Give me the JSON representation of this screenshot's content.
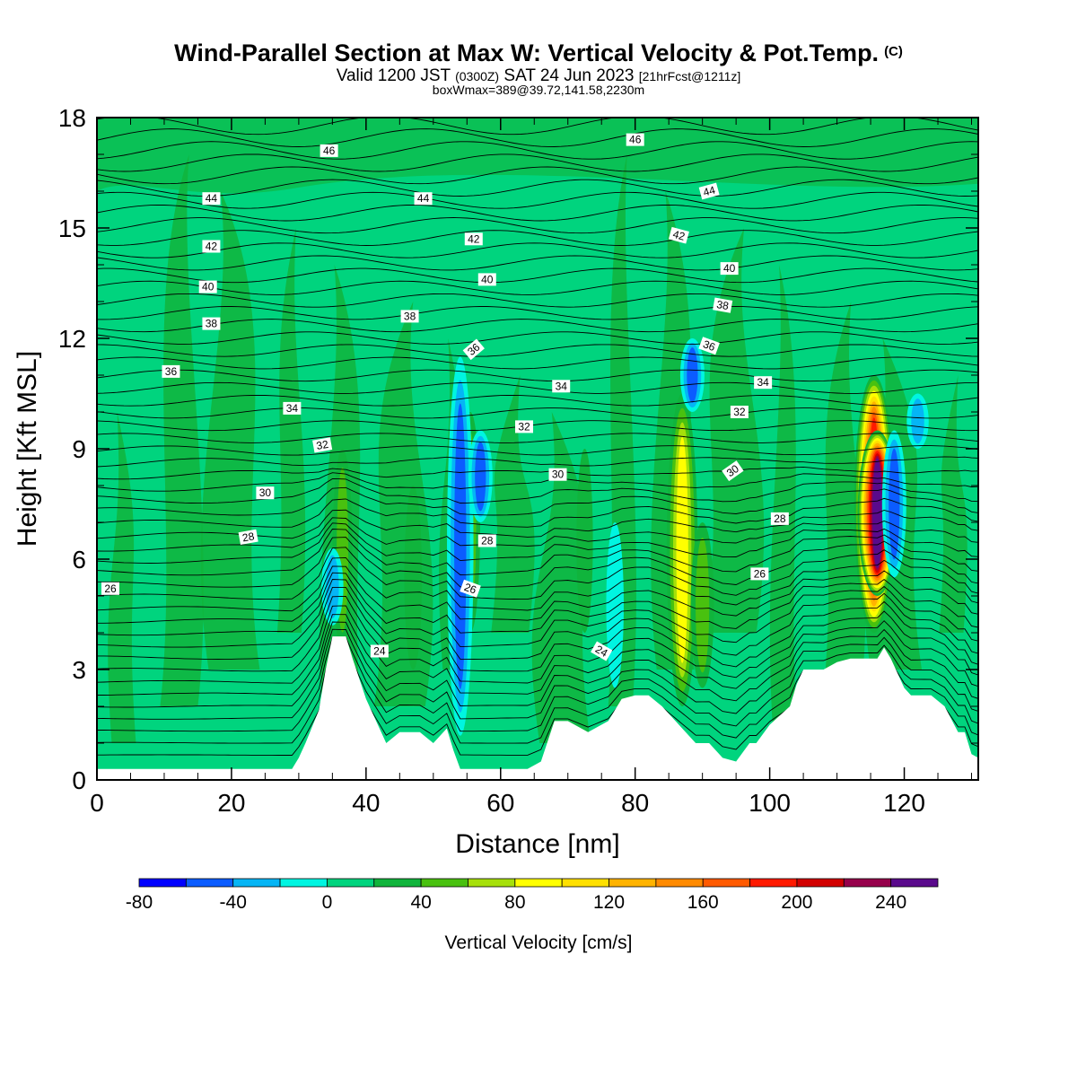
{
  "chart_data": {
    "type": "heatmap",
    "title": "Wind-Parallel Section at Max W: Vertical Velocity & Pot.Temp.",
    "title_mark": "(C)",
    "subtitle_main": "Valid 1200 JST",
    "subtitle_utc": "(0300Z)",
    "subtitle_date": "SAT 24 Jun 2023",
    "subtitle_fcst": "[21hrFcst@1211z]",
    "subtitle2": "boxWmax=389@39.72,141.58,2230m",
    "xlabel": "Distance [nm]",
    "ylabel": "Height [Kft MSL]",
    "xlim": [
      0,
      131
    ],
    "ylim": [
      0,
      18
    ],
    "x_ticks": [
      "0",
      "20",
      "40",
      "60",
      "80",
      "100",
      "120"
    ],
    "y_ticks": [
      "0",
      "3",
      "6",
      "9",
      "12",
      "15",
      "18"
    ],
    "colorbar": {
      "label": "Vertical Velocity [cm/s]",
      "ticks": [
        "-80",
        "-40",
        "0",
        "40",
        "80",
        "120",
        "160",
        "200",
        "240"
      ],
      "bounds": [
        -80,
        260
      ],
      "step": 20,
      "colors": [
        "#0000ff",
        "#0b5cff",
        "#05b5f5",
        "#00f5e1",
        "#00d47e",
        "#10b43c",
        "#49c10f",
        "#a6e00a",
        "#ffff00",
        "#ffe000",
        "#ffb300",
        "#ff8a00",
        "#ff5a00",
        "#ff1a00",
        "#d20000",
        "#96004b",
        "#5a0a8c"
      ]
    },
    "background_value_cm_s": 0,
    "updrafts": [
      {
        "x": 36.5,
        "z_bottom": 3.5,
        "z_top": 9,
        "w": 40
      },
      {
        "x": 47,
        "z_bottom": 3,
        "z_top": 8,
        "w": 30
      },
      {
        "x": 55.5,
        "z_bottom": 4,
        "z_top": 10,
        "w": 40
      },
      {
        "x": 72.5,
        "z_bottom": 4,
        "z_top": 9,
        "w": 25
      },
      {
        "x": 87,
        "z_bottom": 2,
        "z_top": 10.5,
        "w": 90
      },
      {
        "x": 90,
        "z_bottom": 2.5,
        "z_top": 7,
        "w": 55
      },
      {
        "x": 115.5,
        "z_bottom": 4,
        "z_top": 11,
        "w": 190
      },
      {
        "x": 116,
        "z_bottom": 5,
        "z_top": 9.5,
        "w": 240
      }
    ],
    "downdrafts": [
      {
        "x": 35,
        "z_bottom": 4.2,
        "z_top": 6.3,
        "w": -50
      },
      {
        "x": 54,
        "z_bottom": 1.2,
        "z_top": 11.5,
        "w": -70
      },
      {
        "x": 57,
        "z_bottom": 7,
        "z_top": 9.5,
        "w": -60
      },
      {
        "x": 77,
        "z_bottom": 2.5,
        "z_top": 7,
        "w": -30
      },
      {
        "x": 88.5,
        "z_bottom": 10,
        "z_top": 12,
        "w": -60
      },
      {
        "x": 118.5,
        "z_bottom": 5.5,
        "z_top": 9.5,
        "w": -60
      },
      {
        "x": 122,
        "z_bottom": 9,
        "z_top": 10.5,
        "w": -50
      }
    ],
    "terrain": {
      "x": [
        0,
        29,
        30,
        31,
        33,
        34,
        35,
        37,
        38,
        40,
        43,
        45,
        48,
        50,
        52,
        53,
        54,
        56,
        58,
        60,
        61,
        62,
        64,
        66,
        68,
        70,
        73,
        76,
        78,
        80,
        82,
        84,
        86,
        89,
        91,
        93,
        95,
        97,
        98,
        100,
        103,
        104,
        105,
        108,
        110,
        112,
        114,
        116,
        117,
        118,
        120,
        121,
        124,
        126,
        128,
        129,
        130,
        131
      ],
      "height_kft": [
        0.3,
        0.3,
        0.6,
        1.0,
        1.9,
        3.0,
        3.9,
        3.9,
        3.3,
        2.2,
        1.0,
        1.3,
        1.3,
        1.0,
        1.4,
        0.8,
        0.3,
        0.3,
        0.3,
        0.3,
        0.3,
        0.3,
        0.3,
        0.5,
        1.6,
        1.6,
        1.3,
        1.6,
        2.2,
        2.3,
        2.3,
        2.0,
        1.6,
        1.0,
        1.0,
        0.6,
        0.5,
        1.0,
        1.0,
        1.5,
        2.0,
        2.6,
        3.0,
        3.0,
        3.2,
        3.3,
        3.3,
        3.3,
        3.6,
        3.3,
        2.5,
        2.3,
        2.3,
        2.0,
        1.3,
        1.3,
        0.7,
        0.6
      ]
    },
    "theta_contours": [
      {
        "value": "24",
        "label_x": 42,
        "label_z": 3.5,
        "angle": 0
      },
      {
        "value": "24",
        "label_x": 75,
        "label_z": 3.5,
        "angle": 30
      },
      {
        "value": "26",
        "label_x": 2,
        "label_z": 5.2,
        "angle": 0
      },
      {
        "value": "26",
        "label_x": 55.5,
        "label_z": 5.2,
        "angle": 20
      },
      {
        "value": "26",
        "label_x": 98.5,
        "label_z": 5.6,
        "angle": 0
      },
      {
        "value": "28",
        "label_x": 22.5,
        "label_z": 6.6,
        "angle": -10
      },
      {
        "value": "28",
        "label_x": 58,
        "label_z": 6.5,
        "angle": 0
      },
      {
        "value": "28",
        "label_x": 101.5,
        "label_z": 7.1,
        "angle": 0
      },
      {
        "value": "30",
        "label_x": 25,
        "label_z": 7.8,
        "angle": 0
      },
      {
        "value": "30",
        "label_x": 68.5,
        "label_z": 8.3,
        "angle": 0
      },
      {
        "value": "30",
        "label_x": 94.5,
        "label_z": 8.4,
        "angle": -35
      },
      {
        "value": "32",
        "label_x": 33.5,
        "label_z": 9.1,
        "angle": -10
      },
      {
        "value": "32",
        "label_x": 63.5,
        "label_z": 9.6,
        "angle": 0
      },
      {
        "value": "32",
        "label_x": 95.5,
        "label_z": 10.0,
        "angle": 0
      },
      {
        "value": "34",
        "label_x": 29,
        "label_z": 10.1,
        "angle": 0
      },
      {
        "value": "34",
        "label_x": 69,
        "label_z": 10.7,
        "angle": 0
      },
      {
        "value": "34",
        "label_x": 99,
        "label_z": 10.8,
        "angle": 0
      },
      {
        "value": "36",
        "label_x": 11,
        "label_z": 11.1,
        "angle": 0
      },
      {
        "value": "36",
        "label_x": 56,
        "label_z": 11.7,
        "angle": -40
      },
      {
        "value": "36",
        "label_x": 91,
        "label_z": 11.8,
        "angle": 20
      },
      {
        "value": "38",
        "label_x": 17,
        "label_z": 12.4,
        "angle": 0
      },
      {
        "value": "38",
        "label_x": 46.5,
        "label_z": 12.6,
        "angle": 0
      },
      {
        "value": "38",
        "label_x": 93,
        "label_z": 12.9,
        "angle": 10
      },
      {
        "value": "40",
        "label_x": 16.5,
        "label_z": 13.4,
        "angle": 0
      },
      {
        "value": "40",
        "label_x": 58,
        "label_z": 13.6,
        "angle": 0
      },
      {
        "value": "40",
        "label_x": 94,
        "label_z": 13.9,
        "angle": 0
      },
      {
        "value": "42",
        "label_x": 17,
        "label_z": 14.5,
        "angle": 0
      },
      {
        "value": "42",
        "label_x": 56,
        "label_z": 14.7,
        "angle": 0
      },
      {
        "value": "42",
        "label_x": 86.5,
        "label_z": 14.8,
        "angle": 15
      },
      {
        "value": "44",
        "label_x": 17,
        "label_z": 15.8,
        "angle": 0
      },
      {
        "value": "44",
        "label_x": 48.5,
        "label_z": 15.8,
        "angle": 0
      },
      {
        "value": "44",
        "label_x": 91,
        "label_z": 16.0,
        "angle": -15
      },
      {
        "value": "46",
        "label_x": 34.5,
        "label_z": 17.1,
        "angle": 0
      },
      {
        "value": "46",
        "label_x": 80,
        "label_z": 17.4,
        "angle": 0
      }
    ]
  }
}
